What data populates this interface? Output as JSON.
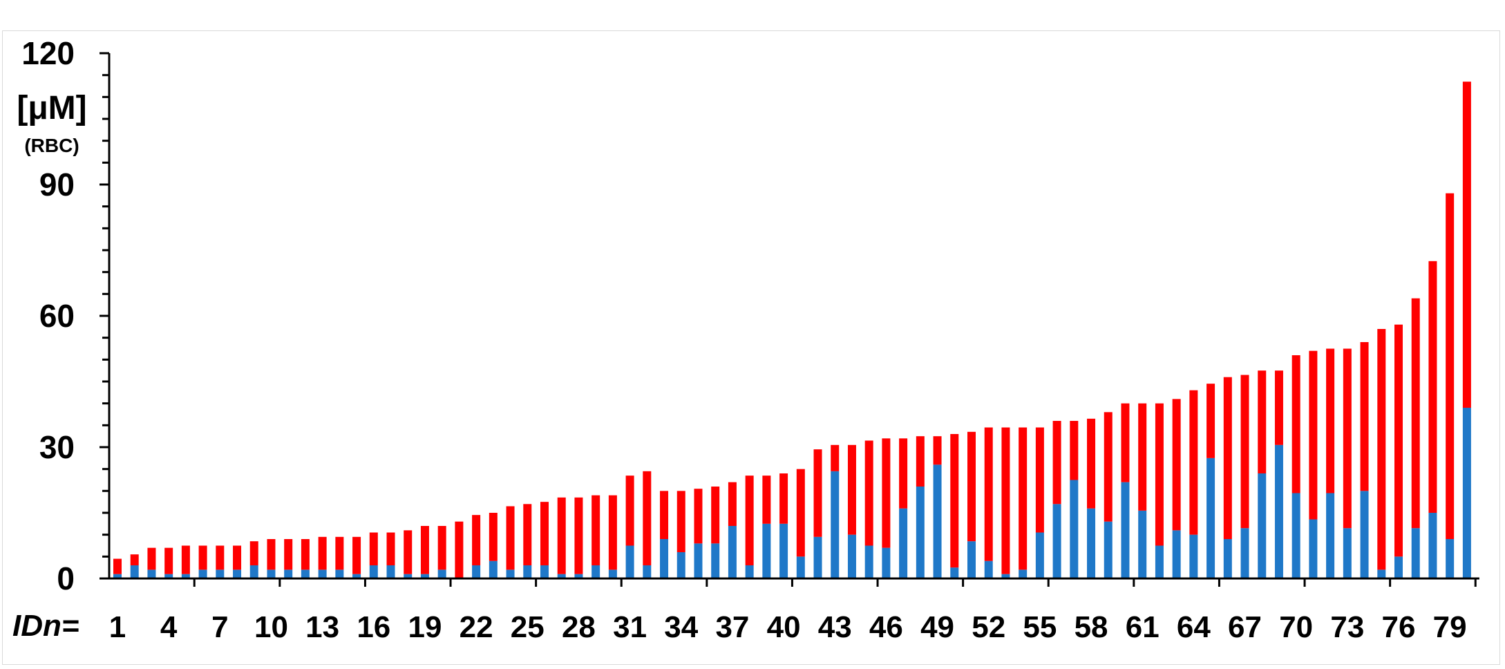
{
  "chart_data": {
    "type": "bar",
    "stacked": true,
    "title": "",
    "ylabel": "[μM]",
    "ylabel_sub": "(RBC)",
    "xlabel": "IDn=",
    "ylim": [
      0,
      120
    ],
    "yticks": [
      0,
      30,
      60,
      90,
      120
    ],
    "y_minor_step": 5,
    "x_tick_labels_every": 3,
    "grid": false,
    "legend": "none",
    "categories": [
      1,
      2,
      3,
      4,
      5,
      6,
      7,
      8,
      9,
      10,
      11,
      12,
      13,
      14,
      15,
      16,
      17,
      18,
      19,
      20,
      21,
      22,
      23,
      24,
      25,
      26,
      27,
      28,
      29,
      30,
      31,
      32,
      33,
      34,
      35,
      36,
      37,
      38,
      39,
      40,
      41,
      42,
      43,
      44,
      45,
      46,
      47,
      48,
      49,
      50,
      51,
      52,
      53,
      54,
      55,
      56,
      57,
      58,
      59,
      60,
      61,
      62,
      63,
      64,
      65,
      66,
      67,
      68,
      69,
      70,
      71,
      72,
      73,
      74,
      75,
      76,
      77,
      78,
      79,
      80
    ],
    "series": [
      {
        "color": "#1f78c8",
        "values": [
          1,
          3,
          2,
          1,
          1,
          2,
          2,
          2,
          3,
          2,
          2,
          2,
          2,
          2,
          1,
          3,
          3,
          1,
          1,
          2,
          0,
          3,
          4,
          2,
          3,
          3,
          1,
          1,
          3,
          2,
          7.5,
          3,
          9,
          6,
          8,
          8,
          12,
          3,
          12.5,
          12.5,
          5,
          9.5,
          24.5,
          10,
          7.5,
          7,
          16,
          21,
          26,
          2.5,
          8.5,
          4,
          1,
          2,
          10.5,
          17,
          22.5,
          16,
          13,
          22,
          15.5,
          7.5,
          11,
          10,
          27.5,
          9,
          11.5,
          24,
          30.5,
          19.5,
          13.5,
          19.5,
          11.5,
          20,
          2,
          5,
          11.5,
          15,
          9,
          39
        ]
      },
      {
        "color": "#ff0000",
        "values": [
          3.5,
          2.5,
          5,
          6,
          6.5,
          5.5,
          5.5,
          5.5,
          5.5,
          7,
          7,
          7,
          7.5,
          7.5,
          8.5,
          7.5,
          7.5,
          10,
          11,
          10,
          13,
          11.5,
          11,
          14.5,
          14,
          14.5,
          17.5,
          17.5,
          16,
          17,
          16,
          21.5,
          11,
          14,
          12.5,
          13,
          10,
          20.5,
          11,
          11.5,
          20,
          20,
          6,
          20.5,
          24,
          25,
          16,
          11.5,
          6.5,
          30.5,
          25,
          30.5,
          33.5,
          32.5,
          24,
          19,
          13.5,
          20.5,
          25,
          18,
          24.5,
          32.5,
          30,
          33,
          17,
          37,
          35,
          23.5,
          17,
          31.5,
          38.5,
          33,
          41,
          34,
          55,
          53,
          52.5,
          57.5,
          79,
          74.5
        ]
      }
    ]
  }
}
